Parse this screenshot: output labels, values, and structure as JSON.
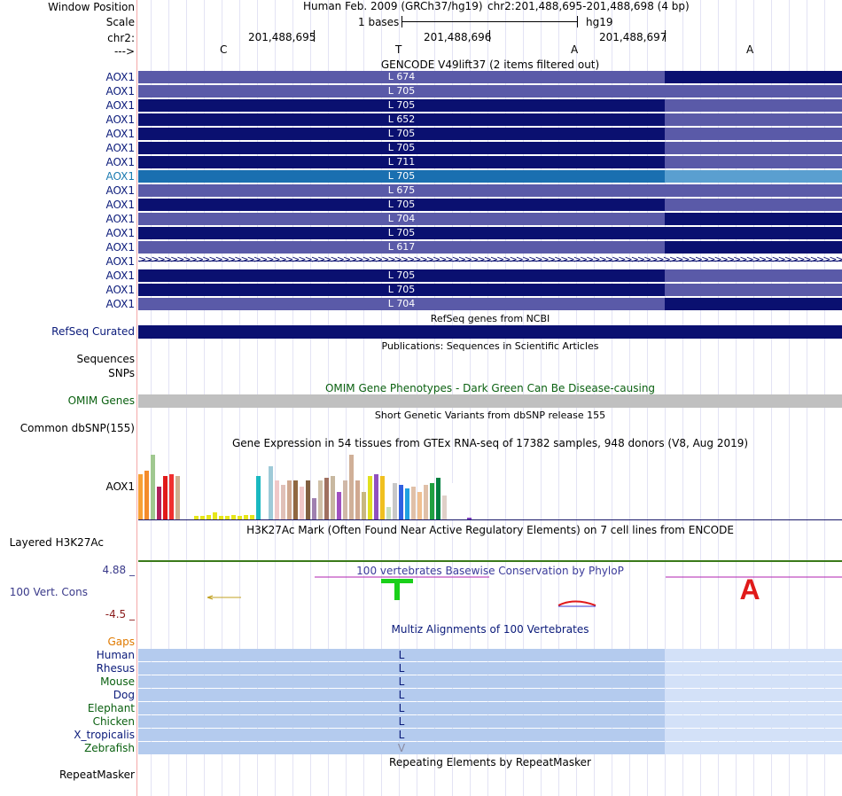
{
  "ruler": {
    "window_position_label": "Window Position",
    "scale_label": "Scale",
    "chr_label": "chr2:",
    "strand_label": "--->",
    "assembly_text": "Human Feb. 2009 (GRCh37/hg19)",
    "position_text": "chr2:201,488,695-201,488,698 (4 bp)",
    "scale_text": "1 bases",
    "db": "hg19",
    "coords": [
      "201,488,695",
      "201,488,696",
      "201,488,697"
    ],
    "bases": [
      "C",
      "T",
      "A",
      "A"
    ]
  },
  "gencode": {
    "title": "GENCODE V49lift37 (2 items filtered out)",
    "rows": [
      {
        "name": "AOX1",
        "aa": "L 674",
        "left": "#5a5aa8",
        "right": "#0a1070",
        "highlight": false
      },
      {
        "name": "AOX1",
        "aa": "L 705",
        "left": "#5a5aa8",
        "right": "#5a5aa8",
        "highlight": false
      },
      {
        "name": "AOX1",
        "aa": "L 705",
        "left": "#0a1070",
        "right": "#5a5aa8",
        "highlight": false
      },
      {
        "name": "AOX1",
        "aa": "L 652",
        "left": "#0a1070",
        "right": "#5a5aa8",
        "highlight": false
      },
      {
        "name": "AOX1",
        "aa": "L 705",
        "left": "#0a1070",
        "right": "#5a5aa8",
        "highlight": false
      },
      {
        "name": "AOX1",
        "aa": "L 705",
        "left": "#0a1070",
        "right": "#5a5aa8",
        "highlight": false
      },
      {
        "name": "AOX1",
        "aa": "L 711",
        "left": "#0a1070",
        "right": "#5a5aa8",
        "highlight": false
      },
      {
        "name": "AOX1",
        "aa": "L 705",
        "left": "#1a6fb0",
        "right": "#5a9fd0",
        "highlight": true
      },
      {
        "name": "AOX1",
        "aa": "L 675",
        "left": "#5a5aa8",
        "right": "#5a5aa8",
        "highlight": false
      },
      {
        "name": "AOX1",
        "aa": "L 705",
        "left": "#0a1070",
        "right": "#5a5aa8",
        "highlight": false
      },
      {
        "name": "AOX1",
        "aa": "L 704",
        "left": "#5a5aa8",
        "right": "#0a1070",
        "highlight": false
      },
      {
        "name": "AOX1",
        "aa": "L 705",
        "left": "#0a1070",
        "right": "#0a1070",
        "highlight": false
      },
      {
        "name": "AOX1",
        "aa": "L 617",
        "left": "#5a5aa8",
        "right": "#0a1070",
        "highlight": false
      },
      {
        "name": "AOX1",
        "aa": "",
        "left": "intron",
        "right": "intron",
        "highlight": false
      },
      {
        "name": "AOX1",
        "aa": "L 705",
        "left": "#0a1070",
        "right": "#5a5aa8",
        "highlight": false
      },
      {
        "name": "AOX1",
        "aa": "L 705",
        "left": "#0a1070",
        "right": "#5a5aa8",
        "highlight": false
      },
      {
        "name": "AOX1",
        "aa": "L 704",
        "left": "#5a5aa8",
        "right": "#0a1070",
        "highlight": false
      }
    ]
  },
  "refseq": {
    "title": "RefSeq genes from NCBI",
    "label": "RefSeq Curated"
  },
  "publications": {
    "title": "Publications: Sequences in Scientific Articles",
    "label1": "Sequences",
    "label2": "SNPs"
  },
  "omim": {
    "title": "OMIM Gene Phenotypes - Dark Green Can Be Disease-causing",
    "label": "OMIM Genes"
  },
  "dbsnp": {
    "title": "Short Genetic Variants from dbSNP release 155",
    "label": "Common dbSNP(155)"
  },
  "gtex": {
    "title": "Gene Expression in 54 tissues from GTEx RNA-seq of 17382 samples, 948 donors (V8, Aug 2019)",
    "label": "AOX1",
    "values": [
      52,
      56,
      75,
      38,
      50,
      52,
      50,
      0,
      0,
      4,
      4,
      5,
      8,
      4,
      4,
      5,
      4,
      5,
      5,
      50,
      0,
      62,
      45,
      40,
      45,
      45,
      38,
      45,
      25,
      45,
      48,
      50,
      32,
      45,
      75,
      45,
      32,
      50,
      52,
      50,
      14,
      42,
      40,
      36,
      38,
      32,
      40,
      42,
      48,
      28,
      42,
      0,
      0,
      2
    ],
    "colors": [
      "#f7a035",
      "#f48b2a",
      "#a0c890",
      "#b0205a",
      "#e01a1a",
      "#f03030",
      "#cdb090",
      "#ffffff",
      "#ffffff",
      "#e6e61a",
      "#e6e61a",
      "#e6e61a",
      "#e6e61a",
      "#e6e61a",
      "#e6e61a",
      "#e6e61a",
      "#e6e61a",
      "#e6e61a",
      "#e6e61a",
      "#1ab8c0",
      "#ffffff",
      "#9ecad8",
      "#f0c8c8",
      "#e0c0b8",
      "#d0a890",
      "#906840",
      "#f0c8c8",
      "#806040",
      "#a080b0",
      "#d0c0a8",
      "#a07060",
      "#c8b8a0",
      "#a050c0",
      "#d0b8a8",
      "#d0b098",
      "#d0a890",
      "#c8b880",
      "#e0e020",
      "#9050c0",
      "#f0c020",
      "#c8e0c0",
      "#c8c8c8",
      "#3060e0",
      "#20a0e0",
      "#e0c0a8",
      "#f0c090",
      "#e0c0a8",
      "#20a040",
      "#008040",
      "#e0d0c8",
      "#ffffff",
      "#ffffff",
      "#ffffff",
      "#8040c0"
    ]
  },
  "h3k27ac": {
    "title": "H3K27Ac Mark (Often Found Near Active Regulatory Elements) on 7 cell lines from ENCODE",
    "label": "Layered H3K27Ac"
  },
  "phylop": {
    "title": "100 vertebrates Basewise Conservation by PhyloP",
    "label": "100 Vert. Cons",
    "ymax": "4.88 _",
    "ymin": "-4.5 _"
  },
  "multiz": {
    "title": "Multiz Alignments of 100 Vertebrates",
    "gaps_label": "Gaps",
    "species": [
      {
        "name": "Human",
        "base": "L",
        "color": "#0a1a7a"
      },
      {
        "name": "Rhesus",
        "base": "L",
        "color": "#0a1a7a"
      },
      {
        "name": "Mouse",
        "base": "L",
        "color": "#0a6010"
      },
      {
        "name": "Dog",
        "base": "L",
        "color": "#0a1a7a"
      },
      {
        "name": "Elephant",
        "base": "L",
        "color": "#0a6010"
      },
      {
        "name": "Chicken",
        "base": "L",
        "color": "#0a6010"
      },
      {
        "name": "X_tropicalis",
        "base": "L",
        "color": "#0a1a7a"
      },
      {
        "name": "Zebrafish",
        "base": "V",
        "color": "#0a6010"
      }
    ]
  },
  "repeatmasker": {
    "title": "Repeating Elements by RepeatMasker",
    "label": "RepeatMasker"
  },
  "colors": {
    "gene_dark": "#0a1070",
    "gene_light": "#5a5aa8",
    "align_dark": "#b4cbee",
    "align_light": "#d3e1f8",
    "omim": "#c0c0c0",
    "phylop_pos": "#1ad01a",
    "phylop_neg": "#e01a1a"
  }
}
